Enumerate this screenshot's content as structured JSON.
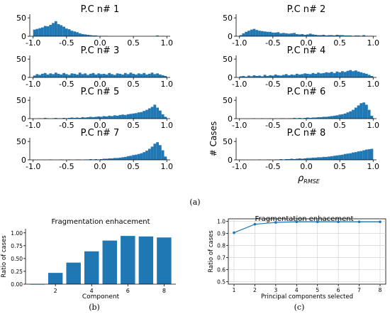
{
  "figure_captions": {
    "top": "(a)",
    "bottom_left": "(b)",
    "bottom_right": "(c)"
  },
  "colors": {
    "bar": "#1f77b4",
    "line": "#1f77b4",
    "axis": "#000000",
    "grid": "#cccccc"
  },
  "chart_data": [
    {
      "type": "histogram",
      "title": "P.C n# 1",
      "xtick_labels": [
        "-1.0",
        "-0.5",
        "0.0",
        "0.5",
        "1.0"
      ],
      "ytick_labels": [
        "0",
        "50"
      ],
      "xlim": [
        -1.05,
        1.05
      ],
      "ylim": [
        0,
        60
      ],
      "bin_start": -1.0,
      "bin_width": 0.04,
      "counts": [
        18,
        20,
        22,
        24,
        28,
        27,
        31,
        36,
        41,
        33,
        30,
        26,
        21,
        19,
        15,
        13,
        11,
        8,
        6,
        5,
        4,
        3,
        2,
        2,
        1,
        1,
        1,
        1,
        0,
        0,
        0,
        0,
        0,
        0,
        0,
        0,
        0,
        0,
        0,
        0,
        0,
        0,
        0,
        0,
        0,
        0,
        2,
        0,
        1,
        0
      ]
    },
    {
      "type": "histogram",
      "title": "P.C n# 2",
      "xtick_labels": [
        "-1.0",
        "-0.5",
        "0.0",
        "0.5",
        "1.0"
      ],
      "ytick_labels": [
        "0",
        "50"
      ],
      "xlim": [
        -1.05,
        1.05
      ],
      "ylim": [
        0,
        60
      ],
      "bin_start": -1.0,
      "bin_width": 0.04,
      "counts": [
        3,
        8,
        12,
        15,
        18,
        20,
        17,
        15,
        14,
        13,
        12,
        12,
        10,
        10,
        11,
        8,
        9,
        8,
        7,
        8,
        9,
        6,
        5,
        6,
        4,
        5,
        7,
        5,
        4,
        3,
        3,
        4,
        2,
        3,
        3,
        2,
        4,
        3,
        3,
        2,
        2,
        2,
        1,
        2,
        2,
        1,
        3,
        1,
        1,
        1
      ]
    },
    {
      "type": "histogram",
      "title": "P.C n# 3",
      "xtick_labels": [
        "-1.0",
        "-0.5",
        "0.0",
        "0.5",
        "1.0"
      ],
      "ytick_labels": [
        "0",
        "50"
      ],
      "xlim": [
        -1.05,
        1.05
      ],
      "ylim": [
        0,
        60
      ],
      "bin_start": -1.0,
      "bin_width": 0.04,
      "counts": [
        5,
        9,
        7,
        10,
        12,
        8,
        11,
        9,
        13,
        10,
        8,
        12,
        9,
        7,
        11,
        10,
        8,
        13,
        9,
        11,
        7,
        10,
        12,
        8,
        11,
        9,
        10,
        8,
        12,
        9,
        7,
        11,
        10,
        8,
        12,
        9,
        13,
        10,
        8,
        11,
        9,
        12,
        8,
        10,
        13,
        9,
        11,
        8,
        6,
        4
      ]
    },
    {
      "type": "histogram",
      "title": "P.C n# 4",
      "xtick_labels": [
        "-1.0",
        "-0.5",
        "0.0",
        "0.5",
        "1.0"
      ],
      "ytick_labels": [
        "0",
        "50"
      ],
      "xlim": [
        -1.05,
        1.05
      ],
      "ylim": [
        0,
        60
      ],
      "bin_start": -1.0,
      "bin_width": 0.04,
      "counts": [
        3,
        4,
        2,
        5,
        3,
        6,
        4,
        5,
        3,
        7,
        4,
        6,
        5,
        8,
        6,
        5,
        7,
        9,
        6,
        8,
        7,
        10,
        8,
        9,
        11,
        10,
        9,
        12,
        10,
        13,
        11,
        12,
        14,
        13,
        15,
        12,
        16,
        14,
        17,
        15,
        18,
        20,
        17,
        19,
        16,
        14,
        12,
        10,
        7,
        4
      ]
    },
    {
      "type": "histogram",
      "title": "P.C n# 5",
      "xtick_labels": [
        "-1.0",
        "-0.5",
        "0.0",
        "0.5",
        "1.0"
      ],
      "ytick_labels": [
        "0",
        "50"
      ],
      "xlim": [
        -1.05,
        1.05
      ],
      "ylim": [
        0,
        60
      ],
      "bin_start": -1.0,
      "bin_width": 0.04,
      "counts": [
        0,
        0,
        1,
        0,
        2,
        1,
        0,
        1,
        2,
        1,
        1,
        2,
        1,
        2,
        3,
        2,
        3,
        2,
        4,
        3,
        4,
        5,
        4,
        5,
        6,
        5,
        7,
        6,
        8,
        7,
        9,
        8,
        10,
        11,
        10,
        12,
        13,
        14,
        15,
        17,
        18,
        21,
        24,
        28,
        32,
        38,
        30,
        22,
        12,
        5
      ]
    },
    {
      "type": "histogram",
      "title": "P.C n# 6",
      "xtick_labels": [
        "-1.0",
        "-0.5",
        "0.0",
        "0.5",
        "1.0"
      ],
      "ytick_labels": [
        "0",
        "50"
      ],
      "xlim": [
        -1.05,
        1.05
      ],
      "ylim": [
        0,
        60
      ],
      "bin_start": -1.0,
      "bin_width": 0.04,
      "counts": [
        0,
        0,
        0,
        0,
        0,
        1,
        0,
        0,
        1,
        0,
        0,
        1,
        0,
        1,
        0,
        1,
        1,
        0,
        1,
        1,
        2,
        1,
        2,
        1,
        2,
        3,
        2,
        3,
        3,
        4,
        4,
        5,
        5,
        6,
        7,
        8,
        9,
        11,
        12,
        14,
        17,
        20,
        24,
        30,
        36,
        42,
        44,
        38,
        24,
        8
      ]
    },
    {
      "type": "histogram",
      "title": "P.C n# 7",
      "xtick_labels": [
        "-1.0",
        "-0.5",
        "0.0",
        "0.5",
        "1.0"
      ],
      "ytick_labels": [
        "0",
        "50"
      ],
      "xlim": [
        -1.05,
        1.05
      ],
      "ylim": [
        0,
        60
      ],
      "bin_start": -1.0,
      "bin_width": 0.04,
      "counts": [
        0,
        0,
        0,
        0,
        0,
        0,
        1,
        0,
        0,
        0,
        1,
        0,
        0,
        1,
        0,
        0,
        1,
        1,
        0,
        1,
        1,
        2,
        1,
        2,
        1,
        2,
        3,
        3,
        4,
        4,
        5,
        5,
        6,
        7,
        8,
        10,
        11,
        13,
        14,
        16,
        18,
        21,
        25,
        30,
        36,
        44,
        48,
        40,
        26,
        9
      ]
    },
    {
      "type": "histogram",
      "title": "P.C n# 8",
      "xtick_labels": [
        "-1.0",
        "-0.5",
        "0.0",
        "0.5",
        "1.0"
      ],
      "ytick_labels": [
        "0",
        "50"
      ],
      "xlabel": "ρ",
      "xlabel_sub": "RMSE",
      "ylabel": "# Cases",
      "xlim": [
        -1.05,
        1.05
      ],
      "ylim": [
        0,
        60
      ],
      "bin_start": -1.0,
      "bin_width": 0.04,
      "counts": [
        0,
        0,
        0,
        0,
        0,
        0,
        0,
        1,
        0,
        0,
        1,
        1,
        0,
        1,
        1,
        2,
        1,
        2,
        2,
        3,
        2,
        3,
        4,
        3,
        4,
        5,
        5,
        6,
        6,
        7,
        7,
        8,
        8,
        9,
        10,
        11,
        12,
        13,
        14,
        16,
        17,
        18,
        20,
        21,
        23,
        24,
        26,
        28,
        29,
        30
      ]
    },
    {
      "type": "bar",
      "title": "Fragmentation enhacement",
      "xlabel": "Component",
      "ylabel": "Ratio of cases",
      "categories": [
        1,
        2,
        3,
        4,
        5,
        6,
        7,
        8
      ],
      "values": [
        0.0,
        0.22,
        0.42,
        0.64,
        0.85,
        0.94,
        0.93,
        0.91
      ],
      "xtick_labels": [
        "2",
        "4",
        "6",
        "8"
      ],
      "ytick_labels": [
        "0.00",
        "0.25",
        "0.50",
        "0.75",
        "1.00"
      ],
      "ylim": [
        0,
        1.08
      ]
    },
    {
      "type": "line",
      "title": "Fragmentation enhacement",
      "xlabel": "Principal components selected",
      "ylabel": "Ratio of cases",
      "x": [
        1,
        2,
        3,
        4,
        5,
        6,
        7,
        8
      ],
      "y": [
        0.905,
        0.975,
        0.99,
        0.995,
        0.995,
        0.995,
        0.995,
        0.995
      ],
      "xtick_labels": [
        "1",
        "2",
        "3",
        "4",
        "5",
        "6",
        "7",
        "8"
      ],
      "ytick_labels": [
        "0.5",
        "0.6",
        "0.7",
        "0.8",
        "0.9",
        "1.0"
      ],
      "ylim": [
        0.48,
        1.02
      ],
      "grid": true
    }
  ]
}
